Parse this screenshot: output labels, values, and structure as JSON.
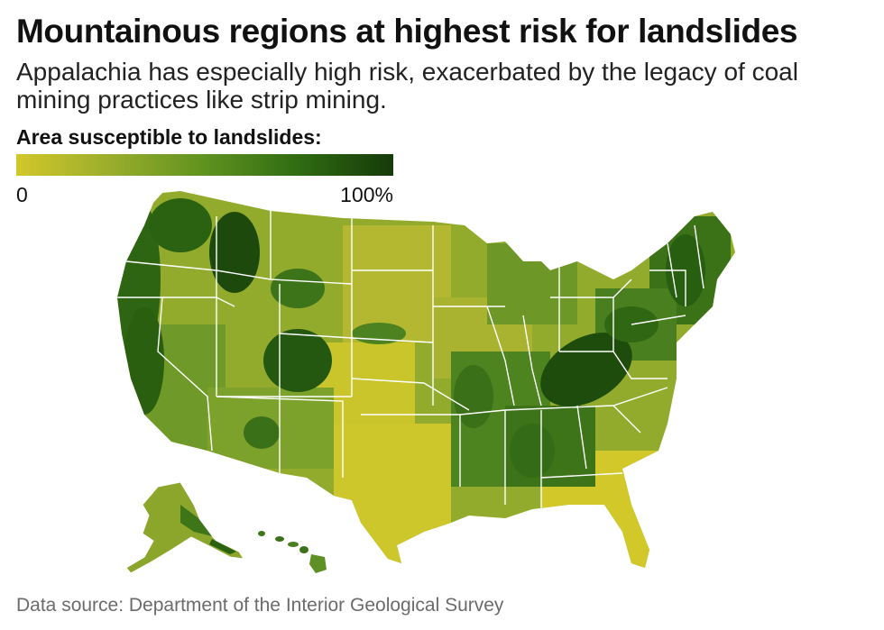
{
  "header": {
    "title": "Mountainous regions at highest risk for landslides",
    "subtitle": "Appalachia has especially high risk, exacerbated by the legacy of coal mining practices like strip mining."
  },
  "legend": {
    "title": "Area susceptible to landslides:",
    "min_label": "0",
    "max_label": "100%",
    "color_stops": [
      "#d2c72a",
      "#9aad2c",
      "#5f921f",
      "#2f6b12",
      "#163a0a"
    ]
  },
  "map": {
    "region": "United States (counties)",
    "metric": "Area susceptible to landslides",
    "regions": [
      {
        "name": "Pacific Northwest",
        "level": 0.8
      },
      {
        "name": "California coast and Sierra",
        "level": 0.85
      },
      {
        "name": "Idaho mountains",
        "level": 0.9
      },
      {
        "name": "Great Basin",
        "level": 0.45
      },
      {
        "name": "Southwest",
        "level": 0.45
      },
      {
        "name": "Wyoming and Montana Rockies",
        "level": 0.6
      },
      {
        "name": "Colorado Rockies",
        "level": 0.8
      },
      {
        "name": "Northern Plains",
        "level": 0.25
      },
      {
        "name": "Central Plains",
        "level": 0.15
      },
      {
        "name": "Texas",
        "level": 0.2
      },
      {
        "name": "Ozarks and Mississippi valley",
        "level": 0.55
      },
      {
        "name": "Upper Midwest",
        "level": 0.35
      },
      {
        "name": "Gulf Coast",
        "level": 0.3
      },
      {
        "name": "Florida",
        "level": 0.1
      },
      {
        "name": "Southeast Piedmont",
        "level": 0.35
      },
      {
        "name": "Appalachia",
        "level": 0.95
      },
      {
        "name": "Northeast",
        "level": 0.7
      },
      {
        "name": "Alaska",
        "level": 0.55
      },
      {
        "name": "Hawaii",
        "level": 0.65
      }
    ]
  },
  "footer": {
    "source": "Data source: Department of the Interior Geological Survey"
  }
}
